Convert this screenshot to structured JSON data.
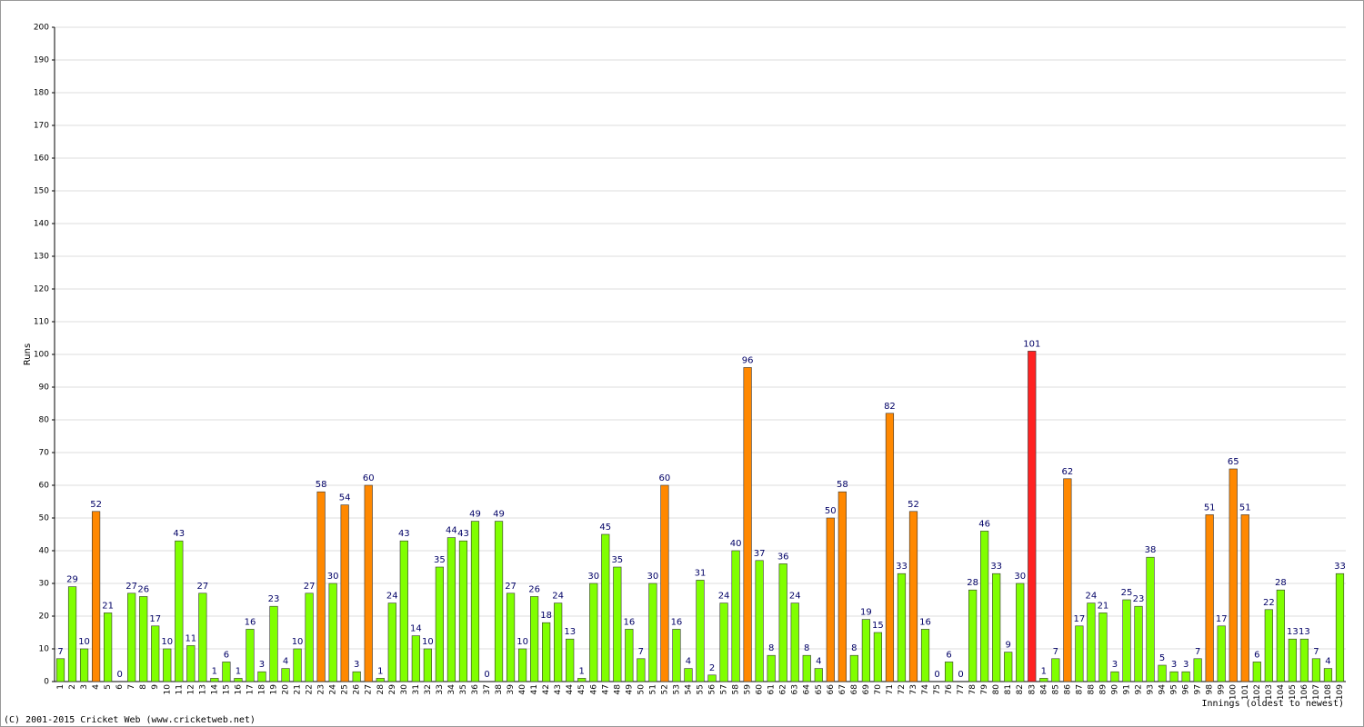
{
  "chart_data": {
    "type": "bar",
    "y_label": "Runs",
    "x_label": "Innings (oldest to newest)",
    "footer": "(C) 2001-2015 Cricket Web (www.cricketweb.net)",
    "categories": [
      "1",
      "2",
      "3",
      "4",
      "5",
      "6",
      "7",
      "8",
      "9",
      "10",
      "11",
      "12",
      "13",
      "14",
      "15",
      "16",
      "17",
      "18",
      "19",
      "20",
      "21",
      "22",
      "23",
      "24",
      "25",
      "26",
      "27",
      "28",
      "29",
      "30",
      "31",
      "32",
      "33",
      "34",
      "35",
      "36",
      "37",
      "38",
      "39",
      "40",
      "41",
      "42",
      "43",
      "44",
      "45",
      "46",
      "47",
      "48",
      "49",
      "50",
      "51",
      "52",
      "53",
      "54",
      "55",
      "56",
      "57",
      "58",
      "59",
      "60",
      "61",
      "62",
      "63",
      "64",
      "65",
      "66",
      "67",
      "68",
      "69",
      "70",
      "71",
      "72",
      "73",
      "74",
      "75",
      "76",
      "77",
      "78",
      "79",
      "80",
      "81",
      "82",
      "83",
      "84",
      "85",
      "86",
      "87",
      "88",
      "89",
      "90",
      "91",
      "92",
      "93",
      "94",
      "95",
      "96",
      "97",
      "98",
      "99",
      "100",
      "101",
      "102",
      "103",
      "104",
      "105",
      "106",
      "107",
      "108",
      "109"
    ],
    "values": [
      7,
      29,
      10,
      52,
      21,
      0,
      27,
      26,
      17,
      10,
      43,
      11,
      27,
      1,
      6,
      1,
      16,
      3,
      23,
      4,
      10,
      27,
      58,
      30,
      54,
      3,
      60,
      1,
      24,
      43,
      14,
      10,
      35,
      44,
      43,
      49,
      0,
      49,
      27,
      10,
      26,
      18,
      24,
      13,
      1,
      30,
      45,
      35,
      16,
      7,
      30,
      60,
      16,
      4,
      31,
      2,
      24,
      40,
      96,
      37,
      8,
      36,
      24,
      8,
      4,
      50,
      58,
      8,
      19,
      15,
      82,
      33,
      52,
      16,
      0,
      6,
      0,
      28,
      46,
      33,
      9,
      30,
      101,
      1,
      7,
      62,
      17,
      24,
      21,
      3,
      25,
      23,
      38,
      5,
      3,
      3,
      7,
      51,
      17,
      65,
      51,
      6,
      22,
      28,
      13,
      13,
      7,
      4,
      33
    ],
    "colors": [
      "#80ff00",
      "#80ff00",
      "#80ff00",
      "#ff8800",
      "#80ff00",
      "#80ff00",
      "#80ff00",
      "#80ff00",
      "#80ff00",
      "#80ff00",
      "#80ff00",
      "#80ff00",
      "#80ff00",
      "#80ff00",
      "#80ff00",
      "#80ff00",
      "#80ff00",
      "#80ff00",
      "#80ff00",
      "#80ff00",
      "#80ff00",
      "#80ff00",
      "#ff8800",
      "#80ff00",
      "#ff8800",
      "#80ff00",
      "#ff8800",
      "#80ff00",
      "#80ff00",
      "#80ff00",
      "#80ff00",
      "#80ff00",
      "#80ff00",
      "#80ff00",
      "#80ff00",
      "#80ff00",
      "#80ff00",
      "#80ff00",
      "#80ff00",
      "#80ff00",
      "#80ff00",
      "#80ff00",
      "#80ff00",
      "#80ff00",
      "#80ff00",
      "#80ff00",
      "#80ff00",
      "#80ff00",
      "#80ff00",
      "#80ff00",
      "#80ff00",
      "#ff8800",
      "#80ff00",
      "#80ff00",
      "#80ff00",
      "#80ff00",
      "#80ff00",
      "#80ff00",
      "#ff8800",
      "#80ff00",
      "#80ff00",
      "#80ff00",
      "#80ff00",
      "#80ff00",
      "#80ff00",
      "#ff8800",
      "#ff8800",
      "#80ff00",
      "#80ff00",
      "#80ff00",
      "#ff8800",
      "#80ff00",
      "#ff8800",
      "#80ff00",
      "#80ff00",
      "#80ff00",
      "#80ff00",
      "#80ff00",
      "#80ff00",
      "#80ff00",
      "#80ff00",
      "#80ff00",
      "#ff2222",
      "#80ff00",
      "#80ff00",
      "#ff8800",
      "#80ff00",
      "#80ff00",
      "#80ff00",
      "#80ff00",
      "#80ff00",
      "#80ff00",
      "#80ff00",
      "#80ff00",
      "#80ff00",
      "#80ff00",
      "#80ff00",
      "#ff8800",
      "#80ff00",
      "#ff8800",
      "#ff8800",
      "#80ff00",
      "#80ff00",
      "#80ff00",
      "#80ff00",
      "#80ff00",
      "#80ff00",
      "#80ff00",
      "#80ff00"
    ],
    "ylim": [
      0,
      200
    ],
    "yticks": [
      0,
      10,
      20,
      30,
      40,
      50,
      60,
      70,
      80,
      90,
      100,
      110,
      120,
      130,
      140,
      150,
      160,
      170,
      180,
      190,
      200
    ],
    "grid": true
  }
}
